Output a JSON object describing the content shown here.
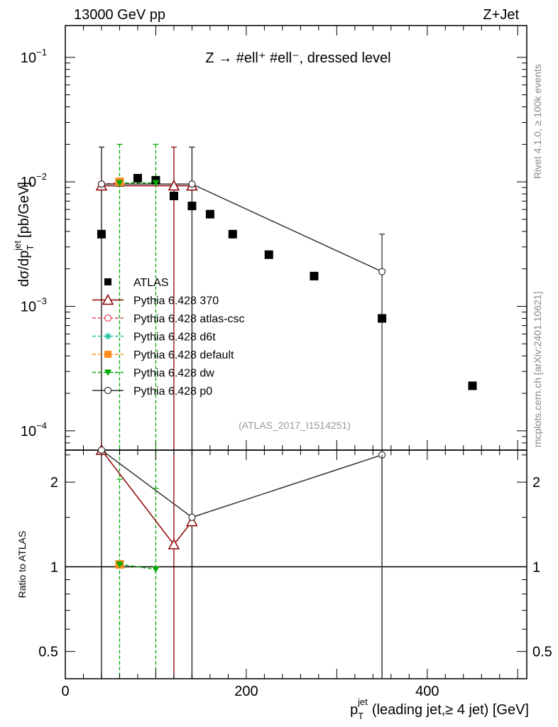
{
  "header": {
    "left": "13000 GeV pp",
    "right": "Z+Jet",
    "title": "Z → #ell⁺ #ell⁻, dressed level"
  },
  "side_labels": {
    "top": "Rivet 4.1.0, ≥ 100k events",
    "bottom": "mcplots.cern.ch [arXiv:2401.10621]"
  },
  "analysis_tag": "(ATLAS_2017_I1514251)",
  "chart_data": [
    {
      "type": "scatter",
      "panel": "main",
      "title": "Z → #ell⁺ #ell⁻, dressed level",
      "ylabel": "dσ/dp_T^jet [pb/GeV]",
      "xlabel": "p_T^jet (leading jet,≥ 4 jet) [GeV]",
      "yscale": "log",
      "xlim": [
        0,
        510
      ],
      "ylim": [
        7e-05,
        0.18
      ],
      "x_ticks": [
        0,
        200,
        400
      ],
      "y_ticks": [
        {
          "value": 0.1,
          "label_base": "10",
          "label_exp": "−1"
        },
        {
          "value": 0.01,
          "label_base": "10",
          "label_exp": "−2"
        },
        {
          "value": 0.001,
          "label_base": "10",
          "label_exp": "−3"
        },
        {
          "value": 0.0001,
          "label_base": "10",
          "label_exp": "−4"
        }
      ],
      "legend": {
        "position": "middle-left"
      },
      "series": [
        {
          "name": "ATLAS",
          "color": "#000000",
          "marker": "square",
          "line": "none",
          "x": [
            40,
            60,
            80,
            100,
            120,
            140,
            160,
            185,
            225,
            275,
            350,
            450
          ],
          "y": [
            0.0038,
            0.0099,
            0.0107,
            0.0103,
            0.0077,
            0.0064,
            0.0055,
            0.0038,
            0.0026,
            0.00175,
            0.0008,
            0.00023
          ]
        },
        {
          "name": "Pythia 6.428 370",
          "color": "#8b0000",
          "marker": "triangle-open",
          "line": "solid",
          "x": [
            40,
            120,
            140
          ],
          "y": [
            0.0093,
            0.0093,
            0.0093
          ],
          "yerr_up": [
            0.019,
            0.019,
            0.019
          ]
        },
        {
          "name": "Pythia 6.428 atlas-csc",
          "color": "#e8455a",
          "marker": "circle-open",
          "line": "dashed",
          "x": [
            40,
            60
          ],
          "y": [
            0.0096,
            0.0098
          ]
        },
        {
          "name": "Pythia 6.428 d6t",
          "color": "#20c0a0",
          "marker": "star",
          "line": "dashed",
          "x": [
            40
          ],
          "y": [
            0.0096
          ]
        },
        {
          "name": "Pythia 6.428 default",
          "color": "#ff8c1a",
          "marker": "square",
          "line": "dashed",
          "x": [
            60
          ],
          "y": [
            0.01
          ]
        },
        {
          "name": "Pythia 6.428 dw",
          "color": "#00aa00",
          "marker": "triangle-down",
          "line": "dashed",
          "x": [
            60,
            100
          ],
          "y": [
            0.0098,
            0.0098
          ],
          "yerr_up": [
            0.02,
            0.02
          ]
        },
        {
          "name": "Pythia 6.428 p0",
          "color": "#333333",
          "marker": "circle-open",
          "line": "solid",
          "x": [
            40,
            140,
            350
          ],
          "y": [
            0.0096,
            0.0096,
            0.0019
          ],
          "yerr_up": [
            0.019,
            0.019,
            0.0038
          ]
        }
      ]
    },
    {
      "type": "line",
      "panel": "ratio",
      "ylabel": "Ratio to ATLAS",
      "xlabel": "p_T^jet (leading jet,≥ 4 jet) [GeV]",
      "yscale": "log",
      "xlim": [
        0,
        510
      ],
      "ylim": [
        0.4,
        2.6
      ],
      "x_ticks": [
        0,
        200,
        400
      ],
      "y_ticks": [
        0.5,
        1,
        2
      ],
      "reference_line": 1,
      "series": [
        {
          "name": "Pythia 6.428 370",
          "color": "#8b0000",
          "marker": "triangle-open",
          "line": "solid",
          "x": [
            40,
            120,
            140
          ],
          "y": [
            2.6,
            1.2,
            1.45
          ]
        },
        {
          "name": "Pythia 6.428 default",
          "color": "#ff8c1a",
          "marker": "square",
          "line": "dashed",
          "x": [
            60
          ],
          "y": [
            1.02
          ]
        },
        {
          "name": "Pythia 6.428 dw",
          "color": "#00aa00",
          "marker": "triangle-down",
          "line": "dashed",
          "x": [
            60,
            100
          ],
          "y": [
            1.02,
            0.98
          ]
        },
        {
          "name": "Pythia 6.428 p0",
          "color": "#333333",
          "marker": "circle-open",
          "line": "solid",
          "x": [
            40,
            140,
            350
          ],
          "y": [
            2.6,
            1.5,
            2.5
          ]
        }
      ]
    }
  ]
}
